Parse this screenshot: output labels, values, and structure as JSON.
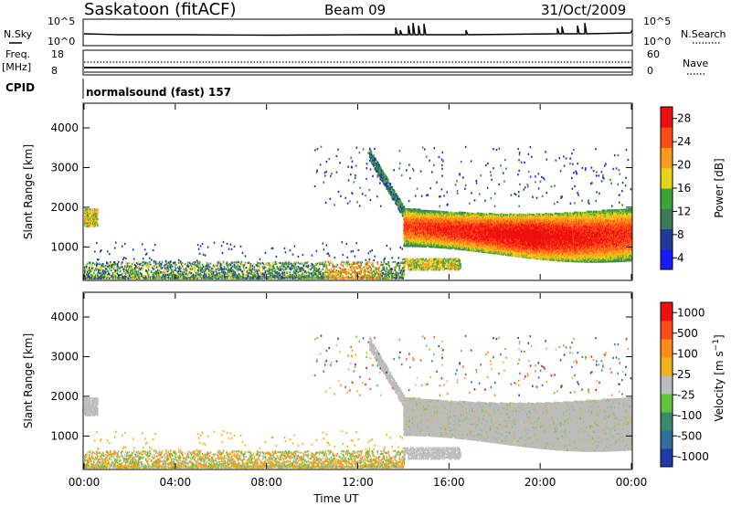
{
  "header": {
    "station": "Saskatoon (fitACF)",
    "beam": "Beam 09",
    "date": "31/Oct/2009"
  },
  "noise_panel": {
    "left_label": "N.Sky",
    "right_label": "N.Search",
    "left_ticks": [
      "10^5",
      "10^0"
    ],
    "right_ticks": [
      "10^5",
      "10^0"
    ]
  },
  "freq_panel": {
    "left_label": "Freq.",
    "left_unit": "[MHz]",
    "left_ticks": [
      "18",
      "8"
    ],
    "right_label": "Nave",
    "right_ticks": [
      "60",
      "0"
    ]
  },
  "cpid": {
    "label": "CPID",
    "mode": "normalsound (fast) 157"
  },
  "colors": {
    "power_scale": [
      "#1a1aff",
      "#1f3a99",
      "#3a7a55",
      "#3da43d",
      "#e8d21a",
      "#ff9a1a",
      "#ff4d1a",
      "#ee1010"
    ],
    "velocity_scale": [
      "#1f3aaa",
      "#2f6f9a",
      "#3a8a6a",
      "#5fc23a",
      "#bcbcbc",
      "#f0b41a",
      "#ff8c1a",
      "#ff4a1a",
      "#ee1010"
    ]
  },
  "chart_data": [
    {
      "type": "heatmap",
      "title": "",
      "xlabel": "Time UT",
      "ylabel": "Slant Range [km]",
      "xticks": [
        "00:00",
        "04:00",
        "08:00",
        "12:00",
        "16:00",
        "20:00",
        "00:00"
      ],
      "xlim_hours": [
        0,
        24
      ],
      "ylim": [
        180,
        4600
      ],
      "yticks": [
        1000,
        2000,
        3000,
        4000
      ],
      "colorbar": {
        "label": "Power [dB]",
        "ticks": [
          "28",
          "24",
          "20",
          "16",
          "12",
          "8",
          "4"
        ],
        "range": [
          0,
          30
        ]
      },
      "regions": [
        {
          "name": "morning patch",
          "t": [
            0.0,
            0.6
          ],
          "range_km": [
            1500,
            1950
          ],
          "level": "medium"
        },
        {
          "name": "ground scatter",
          "t": [
            0.0,
            14.0
          ],
          "range_km": [
            180,
            600
          ],
          "level": "medium"
        },
        {
          "name": "descending tongue",
          "t": [
            12.5,
            14.2
          ],
          "range_km": [
            1500,
            3400
          ],
          "level": "low"
        },
        {
          "name": "night band",
          "t": [
            14.0,
            24.0
          ],
          "range_km": [
            700,
            2000
          ],
          "level": "high",
          "peak_time": 19.5,
          "peak_range_km": 1050
        },
        {
          "name": "lower band",
          "t": [
            14.0,
            16.5
          ],
          "range_km": [
            400,
            700
          ],
          "level": "medium"
        }
      ]
    },
    {
      "type": "heatmap",
      "title": "",
      "xlabel": "Time UT",
      "ylabel": "Slant Range [km]",
      "xticks": [
        "00:00",
        "04:00",
        "08:00",
        "12:00",
        "16:00",
        "20:00",
        "00:00"
      ],
      "xlim_hours": [
        0,
        24
      ],
      "ylim": [
        180,
        4600
      ],
      "yticks": [
        1000,
        2000,
        3000,
        4000
      ],
      "colorbar": {
        "label": "Velocity [m s^-1]",
        "ticks": [
          "1000",
          "500",
          "100",
          "25",
          "-25",
          "-100",
          "-500",
          "-1000"
        ],
        "range": [
          -1000,
          1000
        ]
      },
      "regions": [
        {
          "name": "morning patch",
          "t": [
            0.0,
            0.6
          ],
          "range_km": [
            1500,
            1950
          ],
          "velocity": "grey"
        },
        {
          "name": "ground scatter",
          "t": [
            0.0,
            14.0
          ],
          "range_km": [
            180,
            600
          ],
          "velocity": "mixed"
        },
        {
          "name": "descending tongue",
          "t": [
            12.5,
            14.2
          ],
          "range_km": [
            1500,
            3400
          ],
          "velocity": "grey"
        },
        {
          "name": "night band",
          "t": [
            14.0,
            24.0
          ],
          "range_km": [
            700,
            2000
          ],
          "velocity": "grey"
        }
      ]
    }
  ]
}
